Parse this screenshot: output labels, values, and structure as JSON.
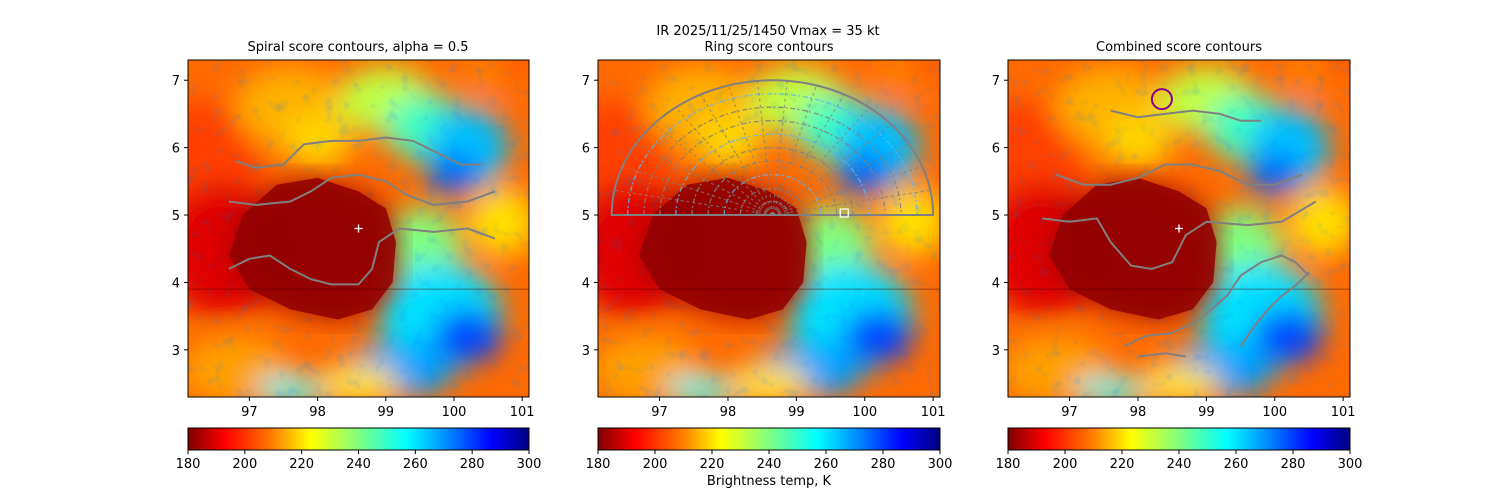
{
  "figure": {
    "suptitle_line1": "IR  2025/11/25/1450    Vmax = 35 kt",
    "colorbar_label": "Brightness temp, K"
  },
  "colors": {
    "contour": "#808080",
    "center_marker": "#ffffff",
    "circle": "#8b008b",
    "background": "#ffffff"
  },
  "chart_data": [
    {
      "type": "heatmap",
      "title": "Spiral score contours, alpha =  0.5",
      "x_ticks": [
        97,
        98,
        99,
        100,
        101
      ],
      "y_ticks": [
        3,
        4,
        5,
        6,
        7
      ],
      "xlim": [
        96.1,
        101.1
      ],
      "ylim": [
        2.3,
        7.3
      ],
      "colorbar": {
        "cmap": "jet",
        "range": [
          180,
          300
        ],
        "ticks": [
          180,
          200,
          220,
          240,
          260,
          280,
          300
        ]
      },
      "center_marker": {
        "x": 98.6,
        "y": 4.8
      },
      "contours": [
        [
          [
            96.8,
            5.8
          ],
          [
            97.1,
            5.7
          ],
          [
            97.5,
            5.75
          ],
          [
            97.8,
            6.05
          ],
          [
            98.2,
            6.1
          ],
          [
            98.6,
            6.1
          ],
          [
            99.0,
            6.15
          ],
          [
            99.4,
            6.1
          ],
          [
            99.8,
            5.9
          ],
          [
            100.1,
            5.75
          ],
          [
            100.4,
            5.75
          ]
        ],
        [
          [
            96.7,
            5.2
          ],
          [
            97.1,
            5.15
          ],
          [
            97.6,
            5.2
          ],
          [
            97.9,
            5.35
          ],
          [
            98.2,
            5.55
          ],
          [
            98.6,
            5.6
          ],
          [
            99.0,
            5.5
          ],
          [
            99.3,
            5.3
          ],
          [
            99.7,
            5.15
          ],
          [
            100.2,
            5.2
          ],
          [
            100.6,
            5.35
          ]
        ],
        [
          [
            96.7,
            4.2
          ],
          [
            97.0,
            4.35
          ],
          [
            97.3,
            4.4
          ],
          [
            97.6,
            4.2
          ],
          [
            97.9,
            4.05
          ],
          [
            98.2,
            3.97
          ],
          [
            98.6,
            3.97
          ],
          [
            98.8,
            4.2
          ],
          [
            98.9,
            4.6
          ],
          [
            99.2,
            4.8
          ],
          [
            99.7,
            4.75
          ],
          [
            100.2,
            4.8
          ],
          [
            100.6,
            4.65
          ]
        ]
      ]
    },
    {
      "type": "heatmap",
      "title": "Ring score contours",
      "x_ticks": [
        97,
        98,
        99,
        100,
        101
      ],
      "y_ticks": [
        3,
        4,
        5,
        6,
        7
      ],
      "xlim": [
        96.1,
        101.1
      ],
      "ylim": [
        2.3,
        7.3
      ],
      "colorbar": {
        "cmap": "jet",
        "range": [
          180,
          300
        ],
        "ticks": [
          180,
          200,
          220,
          240,
          260,
          280,
          300
        ]
      },
      "square_marker": {
        "x": 99.7,
        "y": 5.03
      },
      "ring_region": {
        "x_range": [
          96.5,
          101.2
        ],
        "y_range": [
          5.0,
          7.0
        ]
      }
    },
    {
      "type": "heatmap",
      "title": "Combined score contours",
      "x_ticks": [
        97,
        98,
        99,
        100,
        101
      ],
      "y_ticks": [
        3,
        4,
        5,
        6,
        7
      ],
      "xlim": [
        96.1,
        101.1
      ],
      "ylim": [
        2.3,
        7.3
      ],
      "colorbar": {
        "cmap": "jet",
        "range": [
          180,
          300
        ],
        "ticks": [
          180,
          200,
          220,
          240,
          260,
          280,
          300
        ]
      },
      "center_marker": {
        "x": 98.6,
        "y": 4.8
      },
      "circle_marker": {
        "x": 98.35,
        "y": 6.72
      },
      "contours": [
        [
          [
            97.6,
            6.55
          ],
          [
            98.0,
            6.45
          ],
          [
            98.4,
            6.5
          ],
          [
            98.8,
            6.55
          ],
          [
            99.2,
            6.5
          ],
          [
            99.5,
            6.4
          ],
          [
            99.8,
            6.4
          ]
        ],
        [
          [
            96.8,
            5.6
          ],
          [
            97.2,
            5.45
          ],
          [
            97.6,
            5.45
          ],
          [
            98.0,
            5.55
          ],
          [
            98.4,
            5.75
          ],
          [
            98.8,
            5.75
          ],
          [
            99.2,
            5.65
          ],
          [
            99.6,
            5.45
          ],
          [
            100.0,
            5.45
          ],
          [
            100.4,
            5.6
          ]
        ],
        [
          [
            96.6,
            4.95
          ],
          [
            97.0,
            4.9
          ],
          [
            97.4,
            4.95
          ],
          [
            97.6,
            4.6
          ],
          [
            97.9,
            4.25
          ],
          [
            98.2,
            4.2
          ],
          [
            98.5,
            4.3
          ],
          [
            98.7,
            4.7
          ],
          [
            99.0,
            4.9
          ],
          [
            99.6,
            4.85
          ],
          [
            100.1,
            4.9
          ],
          [
            100.6,
            5.2
          ]
        ],
        [
          [
            97.8,
            3.05
          ],
          [
            98.1,
            3.2
          ],
          [
            98.5,
            3.25
          ],
          [
            98.9,
            3.45
          ],
          [
            99.3,
            3.8
          ],
          [
            99.5,
            4.1
          ],
          [
            99.8,
            4.3
          ],
          [
            100.1,
            4.4
          ],
          [
            100.3,
            4.3
          ],
          [
            100.5,
            4.1
          ]
        ],
        [
          [
            99.5,
            3.05
          ],
          [
            99.7,
            3.35
          ],
          [
            99.9,
            3.6
          ],
          [
            100.1,
            3.8
          ],
          [
            100.3,
            3.95
          ],
          [
            100.5,
            4.15
          ]
        ],
        [
          [
            98.0,
            2.9
          ],
          [
            98.4,
            2.95
          ],
          [
            98.7,
            2.9
          ]
        ]
      ]
    }
  ]
}
